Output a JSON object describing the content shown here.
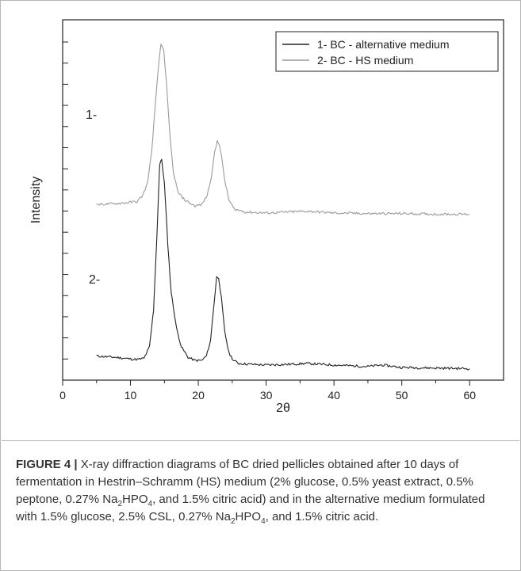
{
  "chart_data": {
    "type": "line",
    "xlabel": "2θ",
    "ylabel": "Intensity",
    "xlim": [
      0,
      65
    ],
    "xticks": [
      0,
      10,
      20,
      30,
      40,
      50,
      60
    ],
    "legend_position": "top-right",
    "curve_labels": [
      "1-",
      "2-"
    ],
    "series": [
      {
        "name": "1- BC - alternative medium",
        "color": "#222222",
        "x": [
          5,
          6,
          8,
          10,
          11,
          12,
          12.8,
          13.4,
          13.9,
          14.3,
          14.6,
          15.0,
          15.5,
          16.0,
          16.8,
          17.5,
          18.5,
          19.5,
          20.5,
          21.2,
          21.8,
          22.3,
          22.7,
          23.0,
          23.4,
          23.9,
          24.5,
          25.2,
          26.0,
          28,
          30,
          33,
          36,
          40,
          45,
          47,
          50,
          55,
          60
        ],
        "y": [
          0.05,
          0.048,
          0.045,
          0.04,
          0.038,
          0.042,
          0.08,
          0.2,
          0.45,
          0.68,
          0.7,
          0.62,
          0.42,
          0.26,
          0.14,
          0.08,
          0.045,
          0.035,
          0.035,
          0.05,
          0.1,
          0.22,
          0.31,
          0.31,
          0.24,
          0.13,
          0.06,
          0.035,
          0.025,
          0.022,
          0.02,
          0.022,
          0.025,
          0.02,
          0.015,
          0.02,
          0.012,
          0.01,
          0.008
        ]
      },
      {
        "name": "2- BC - HS medium",
        "color": "#9a9a9a",
        "x": [
          5,
          7,
          9,
          11,
          11.8,
          12.5,
          13.1,
          13.6,
          14.1,
          14.5,
          14.9,
          15.3,
          15.8,
          16.3,
          17.0,
          18.0,
          19.5,
          20.5,
          21.3,
          21.9,
          22.4,
          22.8,
          23.1,
          23.4,
          23.9,
          24.5,
          25.3,
          27,
          30,
          33,
          36,
          40,
          45,
          50,
          55,
          60
        ],
        "y": [
          0.55,
          0.552,
          0.555,
          0.56,
          0.58,
          0.62,
          0.72,
          0.86,
          1.0,
          1.08,
          1.06,
          0.95,
          0.78,
          0.66,
          0.59,
          0.565,
          0.545,
          0.55,
          0.58,
          0.64,
          0.72,
          0.76,
          0.75,
          0.71,
          0.63,
          0.565,
          0.535,
          0.525,
          0.522,
          0.525,
          0.528,
          0.522,
          0.52,
          0.52,
          0.518,
          0.518
        ]
      }
    ]
  },
  "caption": {
    "label": "FIGURE 4 |",
    "t1": " X-ray diffraction diagrams of BC dried pellicles obtained after 10 days of fermentation in Hestrin–Schramm (HS) medium (2% glucose, 0.5% yeast extract, 0.5% peptone, 0.27% Na",
    "s1": "2",
    "t2": "HPO",
    "s2": "4",
    "t3": ", and 1.5% citric acid) and in the alternative medium formulated with 1.5% glucose, 2.5% CSL, 0.27% Na",
    "s3": "2",
    "t4": "HPO",
    "s4": "4",
    "t5": ", and 1.5% citric acid."
  }
}
